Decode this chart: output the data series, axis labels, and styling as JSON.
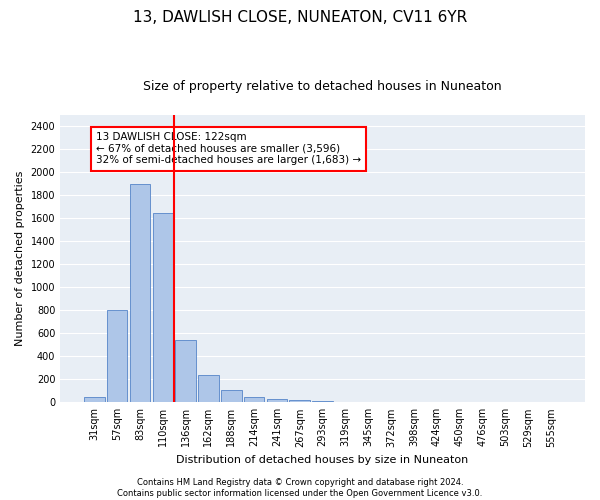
{
  "title": "13, DAWLISH CLOSE, NUNEATON, CV11 6YR",
  "subtitle": "Size of property relative to detached houses in Nuneaton",
  "xlabel": "Distribution of detached houses by size in Nuneaton",
  "ylabel": "Number of detached properties",
  "categories": [
    "31sqm",
    "57sqm",
    "83sqm",
    "110sqm",
    "136sqm",
    "162sqm",
    "188sqm",
    "214sqm",
    "241sqm",
    "267sqm",
    "293sqm",
    "319sqm",
    "345sqm",
    "372sqm",
    "398sqm",
    "424sqm",
    "450sqm",
    "476sqm",
    "503sqm",
    "529sqm",
    "555sqm"
  ],
  "values": [
    50,
    800,
    1900,
    1650,
    540,
    235,
    105,
    50,
    30,
    20,
    10,
    5,
    2,
    1,
    1,
    0,
    0,
    0,
    0,
    0,
    0
  ],
  "bar_color": "#aec6e8",
  "bar_edge_color": "#5585c8",
  "vline_color": "red",
  "vline_pos": 3.5,
  "annotation_text": "13 DAWLISH CLOSE: 122sqm\n← 67% of detached houses are smaller (3,596)\n32% of semi-detached houses are larger (1,683) →",
  "annotation_box_color": "white",
  "annotation_box_edge_color": "red",
  "ylim": [
    0,
    2500
  ],
  "yticks": [
    0,
    200,
    400,
    600,
    800,
    1000,
    1200,
    1400,
    1600,
    1800,
    2000,
    2200,
    2400
  ],
  "footer_line1": "Contains HM Land Registry data © Crown copyright and database right 2024.",
  "footer_line2": "Contains public sector information licensed under the Open Government Licence v3.0.",
  "bg_color": "#e8eef5",
  "title_fontsize": 11,
  "subtitle_fontsize": 9,
  "axis_label_fontsize": 8,
  "tick_fontsize": 7,
  "annotation_fontsize": 7.5,
  "footer_fontsize": 6
}
